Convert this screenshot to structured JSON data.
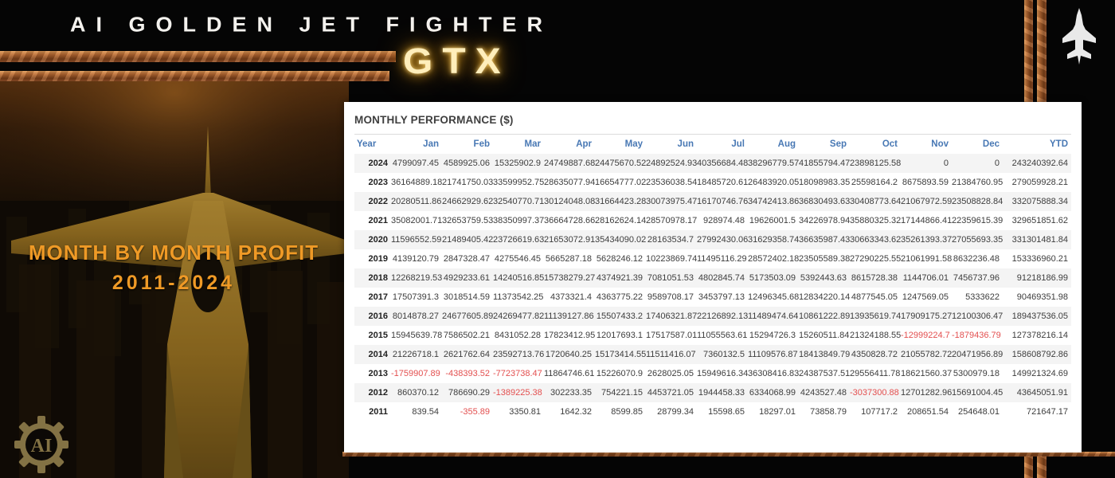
{
  "brand": {
    "title": "AI GOLDEN JET FIGHTER",
    "model": "GTX"
  },
  "hero": {
    "headline_line1": "MONTH BY MONTH PROFIT",
    "headline_line2": "2011-2024",
    "logo_text": "AI"
  },
  "panel": {
    "title": "MONTHLY PERFORMANCE ($)"
  },
  "table": {
    "columns": [
      "Year",
      "Jan",
      "Feb",
      "Mar",
      "Apr",
      "May",
      "Jun",
      "Jul",
      "Aug",
      "Sep",
      "Oct",
      "Nov",
      "Dec",
      "YTD"
    ],
    "rows": [
      {
        "year": "2024",
        "months": [
          "4799097.45",
          "4589925.06",
          "15325902.9",
          "24749887.68",
          "24475670.52",
          "24892524.93",
          "40356684.48",
          "38296779.57",
          "41855794.47",
          "23898125.58",
          "0",
          "0"
        ],
        "ytd": "243240392.64"
      },
      {
        "year": "2023",
        "months": [
          "36164889.18",
          "21741750.03",
          "33599952.75",
          "28635077.94",
          "16654777.02",
          "23536038.54",
          "18485720.61",
          "26483920.05",
          "18098983.35",
          "25598164.2",
          "8675893.59",
          "21384760.95"
        ],
        "ytd": "279059928.21"
      },
      {
        "year": "2022",
        "months": [
          "20280511.86",
          "24662929.62",
          "32540770.71",
          "30124048.08",
          "31664423.28",
          "30073975.47",
          "16170746.76",
          "34742413.86",
          "36830493.63",
          "30408773.64",
          "21067972.59",
          "23508828.84"
        ],
        "ytd": "332075888.34"
      },
      {
        "year": "2021",
        "months": [
          "35082001.71",
          "32653759.53",
          "38350997.37",
          "36664728.66",
          "28162624.14",
          "28570978.17",
          "928974.48",
          "19626001.5",
          "34226978.94",
          "35880325.32",
          "17144866.41",
          "22359615.39"
        ],
        "ytd": "329651851.62"
      },
      {
        "year": "2020",
        "months": [
          "11596552.59",
          "21489405.42",
          "23726619.63",
          "21653072.91",
          "35434090.02",
          "28163534.7",
          "27992430.06",
          "31629358.74",
          "36635987.43",
          "30663343.62",
          "35261393.37",
          "27055693.35"
        ],
        "ytd": "331301481.84"
      },
      {
        "year": "2019",
        "months": [
          "4139120.79",
          "2847328.47",
          "4275546.45",
          "5665287.18",
          "5628246.12",
          "10223869.74",
          "11495116.29",
          "28572402.18",
          "23505589.38",
          "27290225.55",
          "21061991.58",
          "8632236.48"
        ],
        "ytd": "153336960.21"
      },
      {
        "year": "2018",
        "months": [
          "12268219.53",
          "4929233.61",
          "14240516.85",
          "15738279.27",
          "4374921.39",
          "7081051.53",
          "4802845.74",
          "5173503.09",
          "5392443.63",
          "8615728.38",
          "1144706.01",
          "7456737.96"
        ],
        "ytd": "91218186.99"
      },
      {
        "year": "2017",
        "months": [
          "17507391.3",
          "3018514.59",
          "11373542.25",
          "4373321.4",
          "4363775.22",
          "9589708.17",
          "3453797.13",
          "12496345.68",
          "12834220.14",
          "4877545.05",
          "1247569.05",
          "5333622"
        ],
        "ytd": "90469351.98"
      },
      {
        "year": "2016",
        "months": [
          "8014878.27",
          "24677605.89",
          "24269477.82",
          "11139127.86",
          "15507433.2",
          "17406321.87",
          "22126892.13",
          "11489474.64",
          "10861222.89",
          "13935619.74",
          "17909175.27",
          "12100306.47"
        ],
        "ytd": "189437536.05"
      },
      {
        "year": "2015",
        "months": [
          "15945639.78",
          "7586502.21",
          "8431052.28",
          "17823412.95",
          "12017693.1",
          "17517587.01",
          "11055563.61",
          "15294726.3",
          "15260511.84",
          "21324188.55",
          "-12999224.7",
          "-1879436.79"
        ],
        "ytd": "127378216.14"
      },
      {
        "year": "2014",
        "months": [
          "21226718.1",
          "2621762.64",
          "23592713.76",
          "1720640.25",
          "15173414.55",
          "11511416.07",
          "7360132.5",
          "11109576.87",
          "18413849.79",
          "4350828.72",
          "21055782.72",
          "20471956.89"
        ],
        "ytd": "158608792.86"
      },
      {
        "year": "2013",
        "months": [
          "-1759907.89",
          "-438393.52",
          "-7723738.47",
          "11864746.61",
          "15226070.9",
          "2628025.05",
          "15949616.34",
          "36308416.83",
          "24387537.51",
          "29556411.78",
          "18621560.37",
          "5300979.18"
        ],
        "ytd": "149921324.69"
      },
      {
        "year": "2012",
        "months": [
          "860370.12",
          "786690.29",
          "-1389225.38",
          "302233.35",
          "754221.15",
          "4453721.05",
          "1944458.33",
          "6334068.99",
          "4243527.48",
          "-3037300.88",
          "12701282.96",
          "15691004.45"
        ],
        "ytd": "43645051.91"
      },
      {
        "year": "2011",
        "months": [
          "839.54",
          "-355.89",
          "3350.81",
          "1642.32",
          "8599.85",
          "28799.34",
          "15598.65",
          "18297.01",
          "73858.79",
          "107717.2",
          "208651.54",
          "254648.01"
        ],
        "ytd": "721647.17"
      }
    ]
  },
  "colors": {
    "copper": "#bb6c34",
    "gold_glow": "#ffb21e",
    "headline_orange": "#ef9a26",
    "header_blue": "#4878b4",
    "negative_red": "#e34f4f"
  }
}
